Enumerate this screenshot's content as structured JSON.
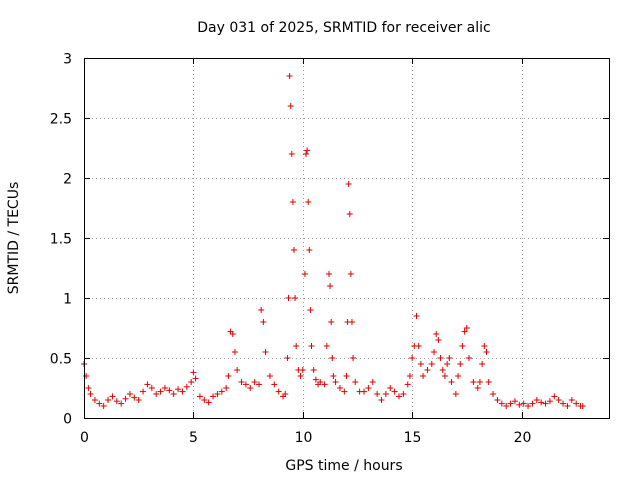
{
  "chart_data": {
    "type": "scatter",
    "title": "Day 031 of 2025, SRMTID for receiver alic",
    "xlabel": "GPS time / hours",
    "ylabel": "SRMTID / TECUs",
    "xlim": [
      0,
      24
    ],
    "ylim": [
      0,
      3
    ],
    "xticks": [
      0,
      5,
      10,
      15,
      20
    ],
    "xtick_labels": [
      "0",
      "5",
      "10",
      "15",
      "20"
    ],
    "yticks": [
      0,
      0.5,
      1,
      1.5,
      2,
      2.5,
      3
    ],
    "ytick_labels": [
      "0",
      "0.5",
      "1",
      "1.5",
      "2",
      "2.5",
      "3"
    ],
    "grid": true,
    "marker": "+",
    "series": [
      {
        "name": "SRMTID",
        "color": "#e00000",
        "x": [
          0.0,
          0.1,
          0.2,
          0.3,
          0.5,
          0.7,
          0.9,
          1.1,
          1.3,
          1.5,
          1.7,
          1.9,
          2.1,
          2.3,
          2.5,
          2.7,
          2.9,
          3.1,
          3.3,
          3.5,
          3.7,
          3.9,
          4.1,
          4.3,
          4.5,
          4.7,
          4.9,
          5.0,
          5.1,
          5.3,
          5.5,
          5.7,
          5.9,
          6.1,
          6.3,
          6.5,
          6.6,
          6.7,
          6.8,
          6.9,
          7.0,
          7.2,
          7.4,
          7.6,
          7.8,
          8.0,
          8.1,
          8.2,
          8.3,
          8.5,
          8.7,
          8.9,
          9.1,
          9.2,
          9.3,
          9.35,
          9.4,
          9.45,
          9.5,
          9.55,
          9.6,
          9.65,
          9.7,
          9.8,
          9.9,
          10.0,
          10.1,
          10.15,
          10.2,
          10.25,
          10.3,
          10.35,
          10.4,
          10.5,
          10.6,
          10.7,
          10.8,
          11.0,
          11.1,
          11.2,
          11.25,
          11.3,
          11.35,
          11.4,
          11.5,
          11.7,
          11.9,
          12.0,
          12.05,
          12.1,
          12.15,
          12.2,
          12.25,
          12.3,
          12.4,
          12.6,
          12.8,
          13.0,
          13.2,
          13.4,
          13.6,
          13.8,
          14.0,
          14.2,
          14.4,
          14.6,
          14.8,
          14.9,
          15.0,
          15.1,
          15.2,
          15.3,
          15.4,
          15.5,
          15.7,
          15.9,
          16.0,
          16.1,
          16.2,
          16.3,
          16.4,
          16.5,
          16.6,
          16.7,
          16.8,
          17.0,
          17.1,
          17.2,
          17.3,
          17.4,
          17.5,
          17.6,
          17.8,
          18.0,
          18.1,
          18.2,
          18.3,
          18.4,
          18.5,
          18.7,
          18.9,
          19.1,
          19.3,
          19.5,
          19.7,
          19.9,
          20.1,
          20.3,
          20.5,
          20.7,
          20.9,
          21.1,
          21.3,
          21.5,
          21.7,
          21.9,
          22.1,
          22.3,
          22.5,
          22.7,
          22.8
        ],
        "y": [
          0.45,
          0.35,
          0.25,
          0.2,
          0.15,
          0.12,
          0.1,
          0.15,
          0.18,
          0.14,
          0.12,
          0.16,
          0.2,
          0.17,
          0.15,
          0.22,
          0.28,
          0.25,
          0.2,
          0.22,
          0.25,
          0.23,
          0.2,
          0.24,
          0.22,
          0.26,
          0.3,
          0.38,
          0.33,
          0.18,
          0.15,
          0.13,
          0.18,
          0.2,
          0.22,
          0.25,
          0.35,
          0.72,
          0.7,
          0.55,
          0.4,
          0.3,
          0.28,
          0.25,
          0.3,
          0.28,
          0.9,
          0.8,
          0.55,
          0.35,
          0.28,
          0.22,
          0.18,
          0.2,
          0.5,
          1.0,
          2.85,
          2.6,
          2.2,
          1.8,
          1.4,
          1.0,
          0.6,
          0.4,
          0.35,
          0.4,
          1.2,
          2.2,
          2.23,
          1.8,
          1.4,
          0.9,
          0.6,
          0.4,
          0.32,
          0.28,
          0.3,
          0.28,
          0.6,
          1.2,
          1.1,
          0.8,
          0.5,
          0.35,
          0.3,
          0.25,
          0.22,
          0.35,
          0.8,
          1.95,
          1.7,
          1.2,
          0.8,
          0.5,
          0.3,
          0.22,
          0.22,
          0.25,
          0.3,
          0.2,
          0.15,
          0.2,
          0.25,
          0.22,
          0.18,
          0.2,
          0.28,
          0.35,
          0.5,
          0.6,
          0.85,
          0.6,
          0.45,
          0.35,
          0.4,
          0.45,
          0.55,
          0.7,
          0.65,
          0.5,
          0.4,
          0.35,
          0.45,
          0.5,
          0.3,
          0.2,
          0.35,
          0.45,
          0.6,
          0.72,
          0.75,
          0.5,
          0.3,
          0.25,
          0.3,
          0.45,
          0.6,
          0.55,
          0.3,
          0.2,
          0.15,
          0.12,
          0.1,
          0.12,
          0.14,
          0.11,
          0.12,
          0.1,
          0.12,
          0.15,
          0.13,
          0.12,
          0.14,
          0.18,
          0.15,
          0.12,
          0.1,
          0.15,
          0.12,
          0.1,
          0.1
        ]
      }
    ]
  }
}
